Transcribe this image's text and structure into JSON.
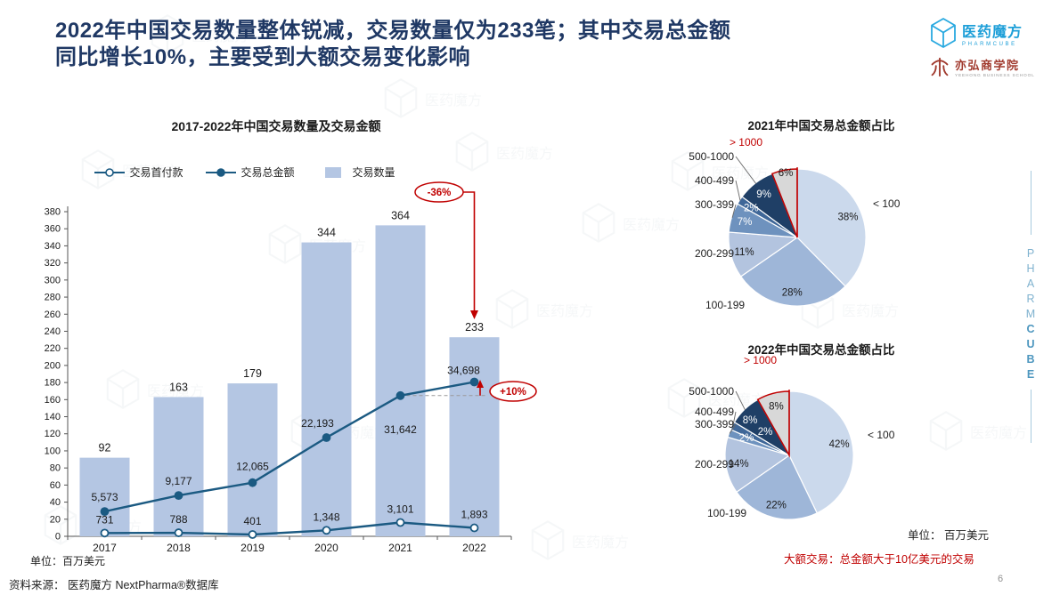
{
  "header": {
    "title_line1": "2022年中国交易数量整体锐减，交易数量仅为233笔；其中交易总金额",
    "title_line2": "同比增长10%，主要受到大额交易变化影响",
    "logo_pharmcube": {
      "name": "医药魔方",
      "sub": "PHARMCUBE"
    },
    "logo_yeehong": {
      "name": "亦弘商学院",
      "sub": "YEEHONG BUSINESS SCHOOL"
    }
  },
  "side_brand": {
    "part1": "PHARM",
    "part2": "CUBE"
  },
  "footer": {
    "source": "资料来源： 医药魔方 NextPharma®数据库",
    "page_number": "6"
  },
  "notes": {
    "unit_right": "单位： 百万美元",
    "big_deal": "大额交易：总金额大于10亿美元的交易"
  },
  "colors": {
    "title_navy": "#1F3864",
    "accent_red": "#C00000",
    "bar_fill": "#B4C6E3",
    "line_blue": "#1B5A82",
    "pie_colors": [
      "#CBD9EC",
      "#9EB6D8",
      "#B3C4DF",
      "#6E92BE",
      "#3F6798",
      "#1F3F66",
      "#D8D8D8"
    ],
    "brand_blue": "#1E9FD8",
    "yeehong_red": "#A13A2E"
  },
  "chart_data": [
    {
      "type": "bar",
      "title": "2017-2022年中国交易数量及交易金额",
      "unit_label": "单位：百万美元",
      "categories": [
        "2017",
        "2018",
        "2019",
        "2020",
        "2021",
        "2022"
      ],
      "ylim": [
        0,
        380
      ],
      "ytick_step": 20,
      "y2lim": [
        0,
        73000
      ],
      "legend_order": [
        "交易首付款",
        "交易总金额",
        "交易数量"
      ],
      "series": [
        {
          "name": "交易数量",
          "kind": "bar",
          "values": [
            92,
            163,
            179,
            344,
            364,
            233
          ]
        },
        {
          "name": "交易总金额",
          "kind": "line",
          "marker": "filled",
          "values": [
            5573,
            9177,
            12065,
            22193,
            31642,
            34698
          ],
          "labels": [
            "5,573",
            "9,177",
            "12,065",
            "22,193",
            "31,642",
            "34,698"
          ]
        },
        {
          "name": "交易首付款",
          "kind": "line",
          "marker": "open",
          "values": [
            731,
            788,
            401,
            1348,
            3101,
            1893
          ],
          "labels": [
            "731",
            "788",
            "401",
            "1,348",
            "3,101",
            "1,893"
          ]
        }
      ],
      "annotations": {
        "count_change": "-36%",
        "amount_change": "+10%"
      }
    },
    {
      "type": "pie",
      "title": "2021年中国交易总金额占比",
      "legend_position": "outside",
      "slices": [
        {
          "label": "< 100",
          "pct": 38
        },
        {
          "label": "100-199",
          "pct": 28
        },
        {
          "label": "200-299",
          "pct": 11
        },
        {
          "label": "300-399",
          "pct": 7
        },
        {
          "label": "400-499",
          "pct": 2
        },
        {
          "label": "500-1000",
          "pct": 9
        },
        {
          "label": "> 1000",
          "pct": 6,
          "highlight": true
        }
      ]
    },
    {
      "type": "pie",
      "title": "2022年中国交易总金额占比",
      "legend_position": "outside",
      "slices": [
        {
          "label": "< 100",
          "pct": 42
        },
        {
          "label": "100-199",
          "pct": 22
        },
        {
          "label": "200-299",
          "pct": 14
        },
        {
          "label": "300-399",
          "pct": 2
        },
        {
          "label": "400-499",
          "pct": 2
        },
        {
          "label": "500-1000",
          "pct": 8
        },
        {
          "label": "> 1000",
          "pct": 8,
          "highlight": true
        }
      ]
    }
  ]
}
